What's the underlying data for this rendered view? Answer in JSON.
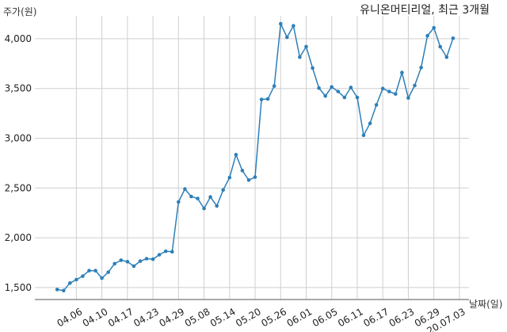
{
  "chart_data": {
    "type": "line",
    "title": "유니온머티리얼, 최근 3개월",
    "ylabel": "주가(원)",
    "xlabel": "날짜(일)",
    "ylim": [
      1380,
      4230
    ],
    "yticks": [
      1500,
      2000,
      2500,
      3000,
      3500,
      4000
    ],
    "ytick_labels": [
      "1,500",
      "2,000",
      "2,500",
      "3,000",
      "3,500",
      "4,000"
    ],
    "xlim": [
      -3.5,
      64.5
    ],
    "xtick_positions": [
      3,
      7,
      11,
      15,
      19,
      23,
      27,
      31,
      35,
      39,
      43,
      47,
      51,
      55,
      59,
      63
    ],
    "xtick_labels": [
      "04.06",
      "04.10",
      "04.17",
      "04.23",
      "04.29",
      "05.08",
      "05.14",
      "05.20",
      "05.26",
      "06.01",
      "06.05",
      "06.11",
      "06.17",
      "06.23",
      "06.29",
      "20.07.03"
    ],
    "grid": true,
    "line_color": "#2e7fb8",
    "values": [
      1480,
      1470,
      1545,
      1580,
      1615,
      1670,
      1670,
      1595,
      1655,
      1740,
      1775,
      1760,
      1715,
      1765,
      1790,
      1785,
      1830,
      1865,
      1860,
      2360,
      2490,
      2415,
      2395,
      2295,
      2410,
      2320,
      2480,
      2605,
      2835,
      2675,
      2580,
      2610,
      3390,
      3395,
      3525,
      4150,
      4015,
      4130,
      3815,
      3920,
      3705,
      3505,
      3425,
      3515,
      3470,
      3410,
      3510,
      3410,
      3030,
      3150,
      3335,
      3500,
      3470,
      3445,
      3660,
      3405,
      3530,
      3710,
      4030,
      4110,
      3920,
      3815,
      4005
    ]
  }
}
